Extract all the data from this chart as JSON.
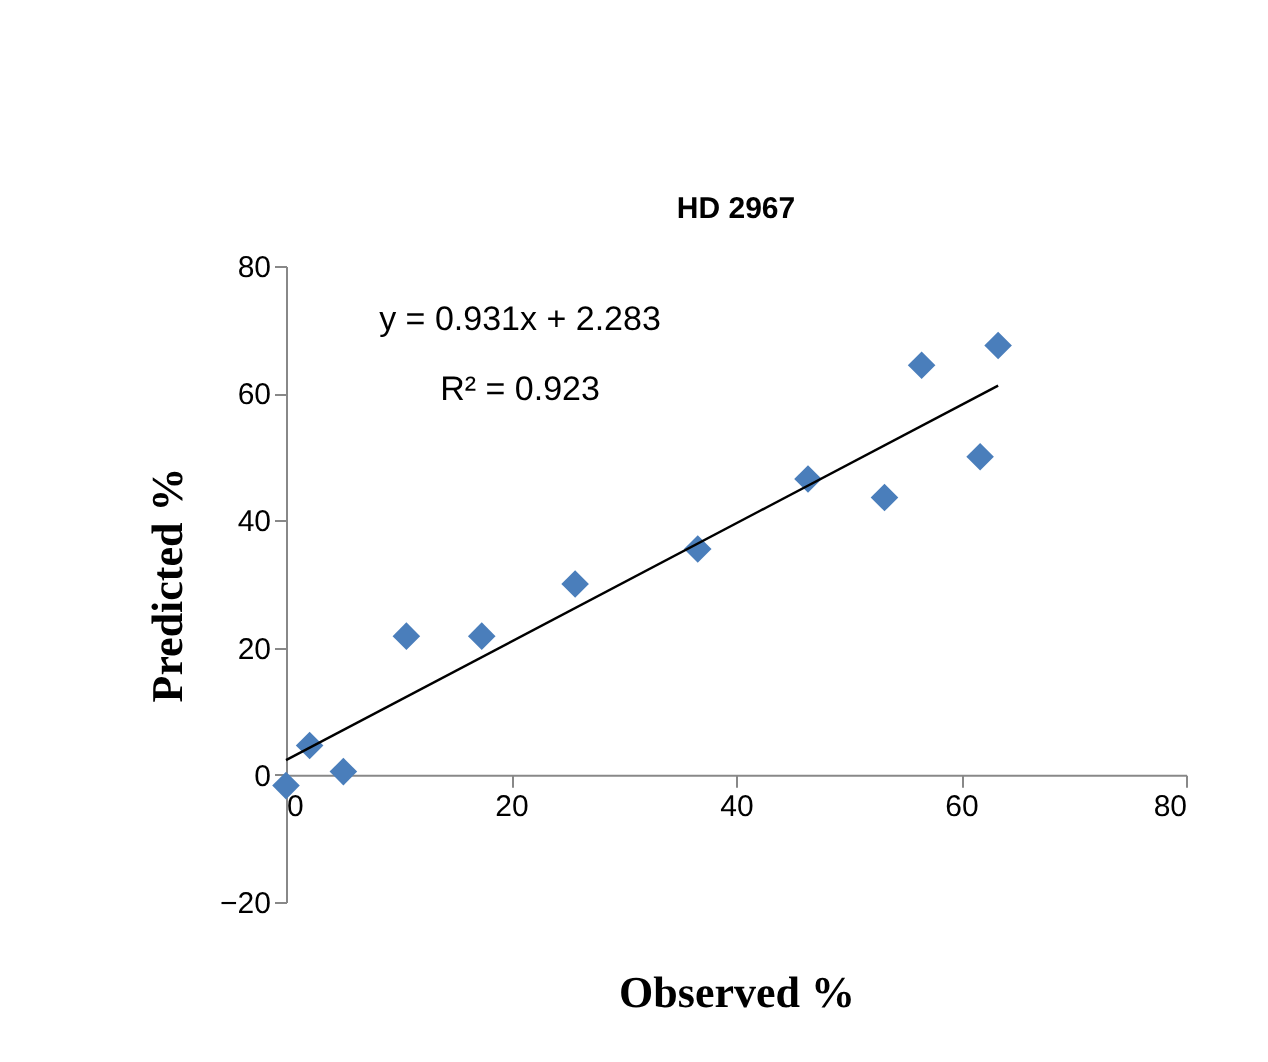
{
  "chart_data": {
    "type": "scatter",
    "title": "HD 2967",
    "xlabel": "Observed %",
    "ylabel": "Predicted %",
    "xlim": [
      0,
      80
    ],
    "xticks": [
      0,
      20,
      40,
      60,
      80
    ],
    "ylim": [
      -20,
      80
    ],
    "yticks": [
      -20,
      0,
      20,
      40,
      60,
      80
    ],
    "grid": false,
    "series": [
      {
        "color": "#4a7ebb",
        "marker": "diamond",
        "x": [
          0,
          2.1,
          5.1,
          10.7,
          17.4,
          25.7,
          36.6,
          46.4,
          53.2,
          56.5,
          61.7,
          63.3
        ],
        "values": [
          -1.7,
          4.6,
          0.5,
          21.8,
          21.8,
          30.0,
          35.5,
          46.5,
          43.6,
          64.4,
          50.0,
          67.5
        ]
      },
      {
        "type": "line",
        "color": "#000000",
        "x": [
          0,
          63.3
        ],
        "values": [
          2.3,
          61.2
        ]
      }
    ],
    "annotations": [
      "y = 0.931x + 2.283",
      "R² = 0.923"
    ]
  }
}
